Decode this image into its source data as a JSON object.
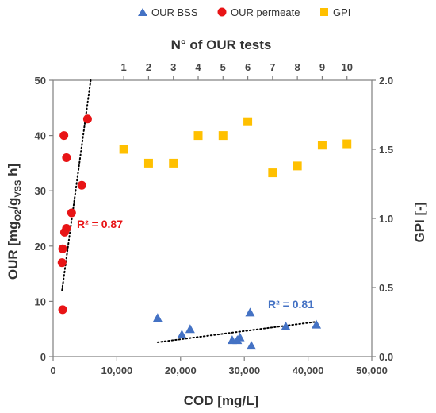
{
  "chart_data": {
    "type": "scatter",
    "legend": {
      "placement": "top",
      "entries": [
        {
          "name": "OUR BSS",
          "marker": "triangle",
          "color": "#4472C4"
        },
        {
          "name": "OUR permeate",
          "marker": "circle",
          "color": "#E81416"
        },
        {
          "name": "GPI",
          "marker": "square",
          "color": "#FFC000"
        }
      ]
    },
    "xlabel": "COD [mg/L]",
    "x_ticks": [
      "0",
      "10,000",
      "20,000",
      "30,000",
      "40,000",
      "50,000"
    ],
    "xlim": [
      0,
      50000
    ],
    "ylabel_prefix": "OUR [mg",
    "ylabel_sub1": "O2",
    "ylabel_mid": "/g",
    "ylabel_sub2": "VSS",
    "ylabel_suffix": " h]",
    "y_ticks": [
      "0",
      "10",
      "20",
      "30",
      "40",
      "50"
    ],
    "ylim": [
      0,
      50
    ],
    "x2label": "N° of OUR tests",
    "x2_ticks": [
      "1",
      "2",
      "3",
      "4",
      "5",
      "6",
      "7",
      "8",
      "9",
      "10"
    ],
    "x2_positions": [
      1,
      2,
      3,
      4,
      5,
      6,
      7,
      8,
      9,
      10
    ],
    "x2lim": [
      -1.85,
      11
    ],
    "y2label": "GPI [-]",
    "y2_ticks": [
      "0.0",
      "0.5",
      "1.0",
      "1.5",
      "2.0"
    ],
    "y2lim": [
      0,
      2
    ],
    "series": [
      {
        "name": "OUR BSS",
        "axis": "primary",
        "color": "#4472C4",
        "marker": "triangle",
        "x": [
          16400,
          20200,
          21500,
          28100,
          28900,
          29300,
          30900,
          31100,
          36500,
          41300
        ],
        "y": [
          7.0,
          4.0,
          5.0,
          3.0,
          3.0,
          3.5,
          8.0,
          2.0,
          5.5,
          5.8
        ]
      },
      {
        "name": "OUR permeate",
        "axis": "primary",
        "color": "#E81416",
        "marker": "circle",
        "x": [
          1500,
          1400,
          1500,
          1800,
          2100,
          2100,
          2900,
          4500,
          5400,
          1700
        ],
        "y": [
          8.5,
          17.0,
          19.5,
          22.5,
          23.2,
          36.0,
          26.0,
          31.0,
          43.0,
          40.0
        ]
      },
      {
        "name": "GPI",
        "axis": "top-right",
        "color": "#FFC000",
        "marker": "square",
        "x": [
          1,
          2,
          3,
          4,
          5,
          6,
          7,
          8,
          9,
          10
        ],
        "y": [
          1.5,
          1.4,
          1.4,
          1.6,
          1.6,
          1.7,
          1.33,
          1.38,
          1.53,
          1.54
        ]
      }
    ],
    "trendlines": [
      {
        "series": "OUR permeate",
        "x": [
          1400,
          5900
        ],
        "y": [
          12.0,
          50.0
        ],
        "color": "#000000",
        "style": "dotted",
        "r2_label": "R² = 0.87",
        "r2_color": "#E81416"
      },
      {
        "series": "OUR BSS",
        "x": [
          16400,
          41300
        ],
        "y": [
          2.6,
          6.3
        ],
        "color": "#000000",
        "style": "dotted",
        "r2_label": "R² = 0.81",
        "r2_color": "#4472C4"
      }
    ],
    "grid": false
  }
}
